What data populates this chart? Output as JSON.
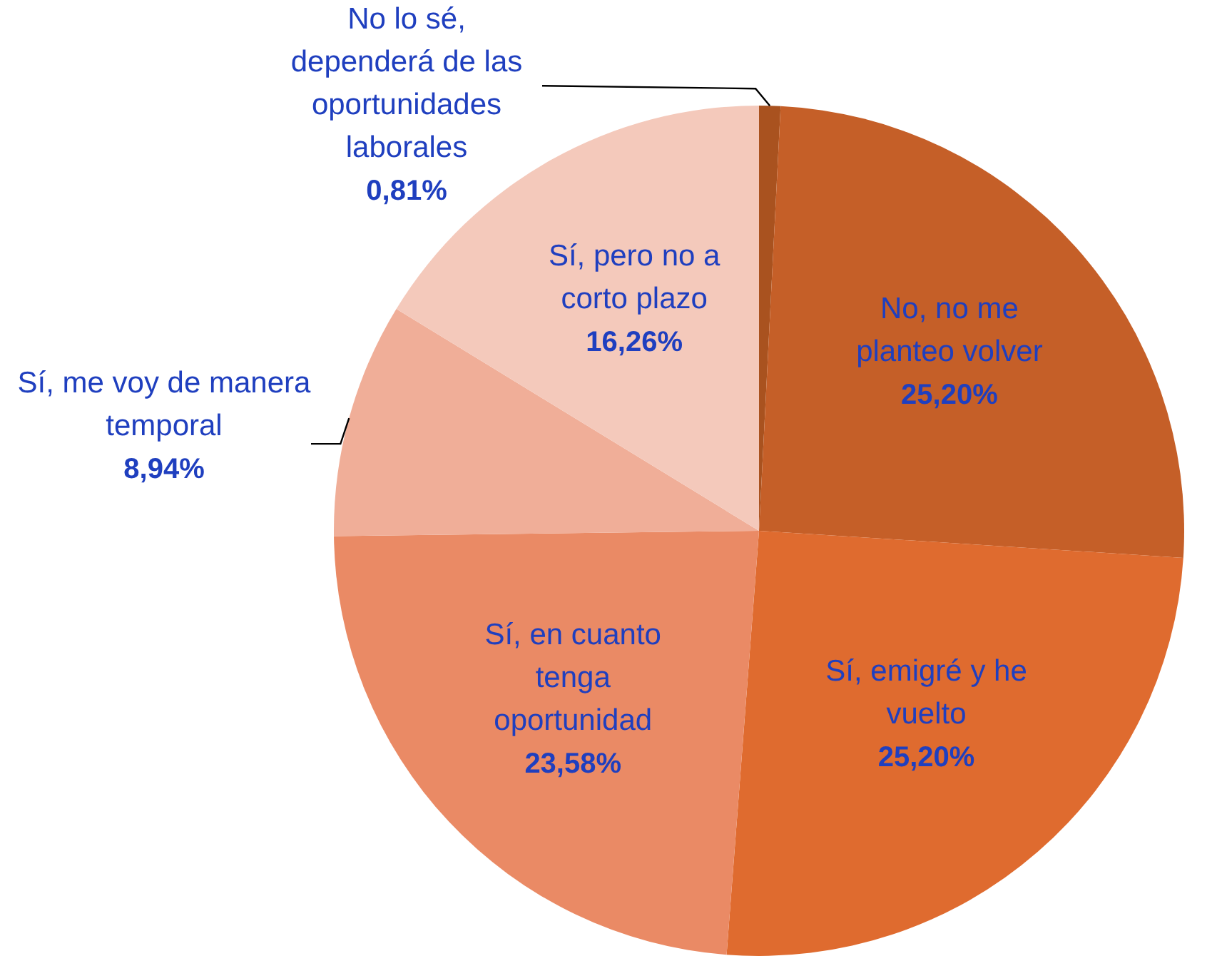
{
  "chart_data": {
    "type": "pie",
    "categories": [
      "No lo sé, dependerá de las oportunidades laborales",
      "No, no me planteo volver",
      "Sí, emigré y he vuelto",
      "Sí, en cuanto tenga oportunidad",
      "Sí, me voy de manera temporal",
      "Sí, pero no a corto plazo"
    ],
    "values": [
      0.81,
      25.2,
      25.2,
      23.58,
      8.94,
      16.26
    ],
    "value_labels": [
      "0,81%",
      "25,20%",
      "25,20%",
      "23,58%",
      "8,94%",
      "16,26%"
    ],
    "colors": [
      "#a9521f",
      "#c55f28",
      "#df6b2f",
      "#ea8a65",
      "#f0ae98",
      "#f4c9bb"
    ]
  }
}
